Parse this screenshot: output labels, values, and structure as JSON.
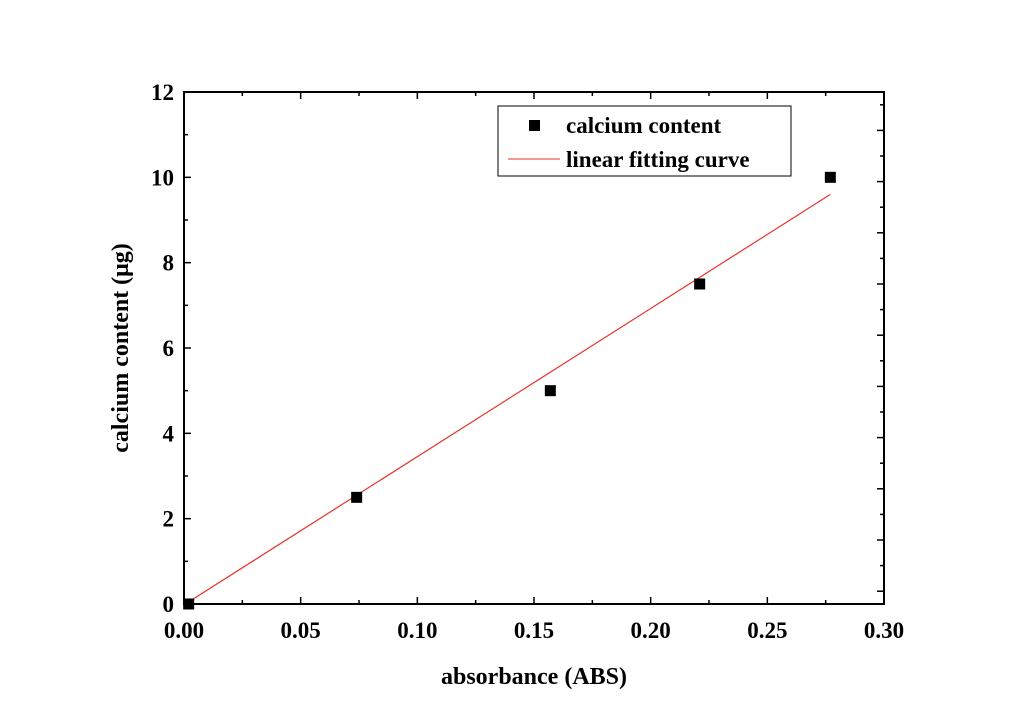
{
  "chart_data": {
    "type": "scatter",
    "xlabel": "absorbance (ABS)",
    "ylabel": "calcium content (μg)",
    "xlim": [
      0,
      0.3
    ],
    "ylim": [
      0,
      12
    ],
    "xticks": [
      "0.00",
      "0.05",
      "0.10",
      "0.15",
      "0.20",
      "0.25",
      "0.30"
    ],
    "yticks": [
      "0",
      "2",
      "4",
      "6",
      "8",
      "10",
      "12"
    ],
    "grid": false,
    "legend_position": "top-right",
    "series": [
      {
        "name": "calcium content",
        "kind": "scatter",
        "marker": "square",
        "color": "#000000",
        "x": [
          0.002,
          0.074,
          0.157,
          0.221,
          0.277
        ],
        "y": [
          0.0,
          2.5,
          5.0,
          7.5,
          10.0
        ]
      },
      {
        "name": "linear fitting curve",
        "kind": "line",
        "color": "#e8322a",
        "x": [
          0.002,
          0.277
        ],
        "y": [
          0.05,
          9.6
        ]
      }
    ]
  }
}
